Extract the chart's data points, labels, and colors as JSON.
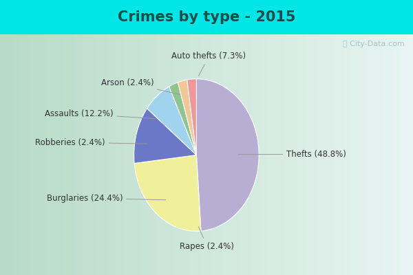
{
  "title": "Crimes by type - 2015",
  "labels": [
    "Thefts",
    "Burglaries",
    "Assaults",
    "Auto thefts",
    "Rapes",
    "Arson",
    "Robberies"
  ],
  "percentages": [
    48.8,
    24.4,
    12.2,
    7.3,
    2.4,
    2.4,
    2.4
  ],
  "colors": [
    "#b8aed4",
    "#f0f09a",
    "#6b78c8",
    "#a0d4ee",
    "#8ec48e",
    "#f0c898",
    "#f09898"
  ],
  "title_color": "#1a4a4a",
  "label_color": "#333333",
  "arrow_color": "#999999",
  "title_bg": "#00e5e5",
  "main_bg_left": "#b8dcc8",
  "main_bg_right": "#e8f4f4",
  "cyan_border": "#00e5e5",
  "title_fontsize": 15,
  "label_fontsize": 8.5,
  "watermark": "City-Data.com"
}
